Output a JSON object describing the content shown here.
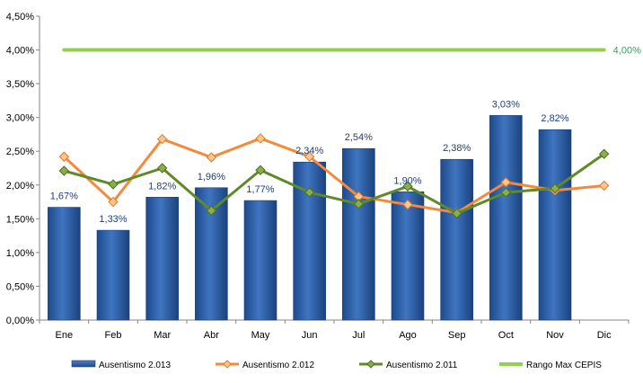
{
  "chart_data": {
    "type": "bar",
    "categories": [
      "Ene",
      "Feb",
      "Mar",
      "Abr",
      "May",
      "Jun",
      "Jul",
      "Ago",
      "Sep",
      "Oct",
      "Nov",
      "Dic"
    ],
    "ylim": [
      0,
      4.5
    ],
    "yticks": [
      "0,00%",
      "0,50%",
      "1,00%",
      "1,50%",
      "2,00%",
      "2,50%",
      "3,00%",
      "3,50%",
      "4,00%",
      "4,50%"
    ],
    "legend_position": "bottom",
    "grid": false,
    "series": [
      {
        "name": "Ausentismo 2.013",
        "kind": "bar",
        "color": "#2e5fa3",
        "values": [
          1.67,
          1.33,
          1.82,
          1.96,
          1.77,
          2.34,
          2.54,
          1.9,
          2.38,
          3.03,
          2.82,
          null
        ],
        "labels": [
          "1,67%",
          "1,33%",
          "1,82%",
          "1,96%",
          "1,77%",
          "2,34%",
          "2,54%",
          "1,90%",
          "2,38%",
          "3,03%",
          "2,82%",
          ""
        ]
      },
      {
        "name": "Ausentismo 2.012",
        "kind": "line",
        "color": "#f7883a",
        "values": [
          2.42,
          1.75,
          2.68,
          2.41,
          2.69,
          2.42,
          1.83,
          1.71,
          1.59,
          2.04,
          1.92,
          1.99
        ]
      },
      {
        "name": "Ausentismo 2.011",
        "kind": "line",
        "color": "#5f8a2a",
        "values": [
          2.21,
          2.01,
          2.25,
          1.62,
          2.22,
          1.89,
          1.72,
          1.98,
          1.58,
          1.89,
          1.95,
          2.46
        ]
      },
      {
        "name": "Rango Max CEPIS",
        "kind": "line",
        "color": "#92d050",
        "values": [
          4.0,
          4.0,
          4.0,
          4.0,
          4.0,
          4.0,
          4.0,
          4.0,
          4.0,
          4.0,
          4.0,
          4.0
        ],
        "end_label": "4,00%"
      }
    ]
  }
}
